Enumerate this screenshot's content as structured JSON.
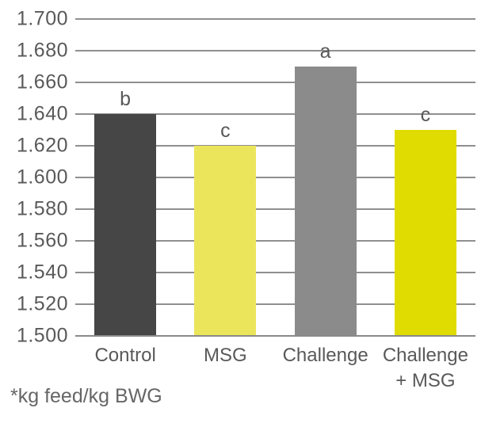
{
  "chart_data": {
    "type": "bar",
    "title": "",
    "xlabel": "",
    "ylabel": "",
    "categories": [
      "Control",
      "MSG",
      "Challenge",
      "Challenge\n+ MSG"
    ],
    "values": [
      1.64,
      1.62,
      1.67,
      1.63
    ],
    "significance_letters": [
      "b",
      "c",
      "a",
      "c"
    ],
    "bar_colors": [
      "#464646",
      "#ebe55c",
      "#8b8b8b",
      "#e0db00"
    ],
    "ylim": [
      1.5,
      1.7
    ],
    "ytick_step": 0.02,
    "yticks": [
      "1.700",
      "1.680",
      "1.660",
      "1.640",
      "1.620",
      "1.600",
      "1.580",
      "1.560",
      "1.540",
      "1.520",
      "1.500"
    ],
    "grid": "horizontal",
    "legend": "none",
    "footnote": "*kg feed/kg BWG"
  },
  "colors": {
    "text": "#595959",
    "gridline": "#8f8f8f",
    "axis_line": "#8a8a8a",
    "background": "#ffffff"
  }
}
